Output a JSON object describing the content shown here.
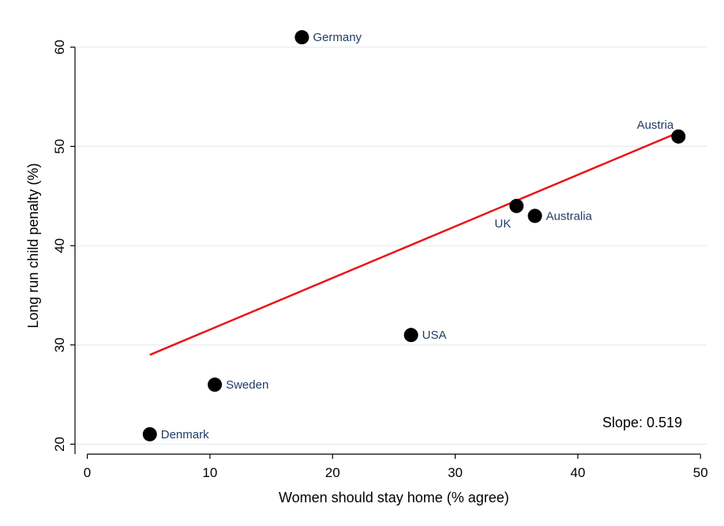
{
  "chart_data": {
    "type": "scatter",
    "title": "",
    "xlabel": "Women should stay home (% agree)",
    "ylabel": "Long run child penalty (%)",
    "xlim": [
      -1,
      50.5
    ],
    "ylim": [
      19,
      63
    ],
    "xticks": [
      0,
      10,
      20,
      30,
      40,
      50
    ],
    "yticks": [
      20,
      30,
      40,
      50,
      60
    ],
    "grid": "horizontal",
    "points": [
      {
        "label": "Germany",
        "x": 17.5,
        "y": 61,
        "label_pos": "right"
      },
      {
        "label": "Austria",
        "x": 48.2,
        "y": 51,
        "label_pos": "upper-left"
      },
      {
        "label": "UK",
        "x": 35.0,
        "y": 44,
        "label_pos": "lower-left"
      },
      {
        "label": "Australia",
        "x": 36.5,
        "y": 43,
        "label_pos": "right"
      },
      {
        "label": "USA",
        "x": 26.4,
        "y": 31,
        "label_pos": "right"
      },
      {
        "label": "Sweden",
        "x": 10.4,
        "y": 26,
        "label_pos": "right"
      },
      {
        "label": "Denmark",
        "x": 5.1,
        "y": 21,
        "label_pos": "right"
      }
    ],
    "fit_line": {
      "x": [
        5.1,
        48.2
      ],
      "y": [
        29.0,
        51.4
      ],
      "color": "#e8141a"
    },
    "annotation": "Slope: 0.519",
    "annotation_pos": "bottom-right",
    "colors": {
      "marker": "#000000",
      "point_label": "#1f3d66",
      "grid": "#e4ecec",
      "axis": "#000000"
    }
  }
}
